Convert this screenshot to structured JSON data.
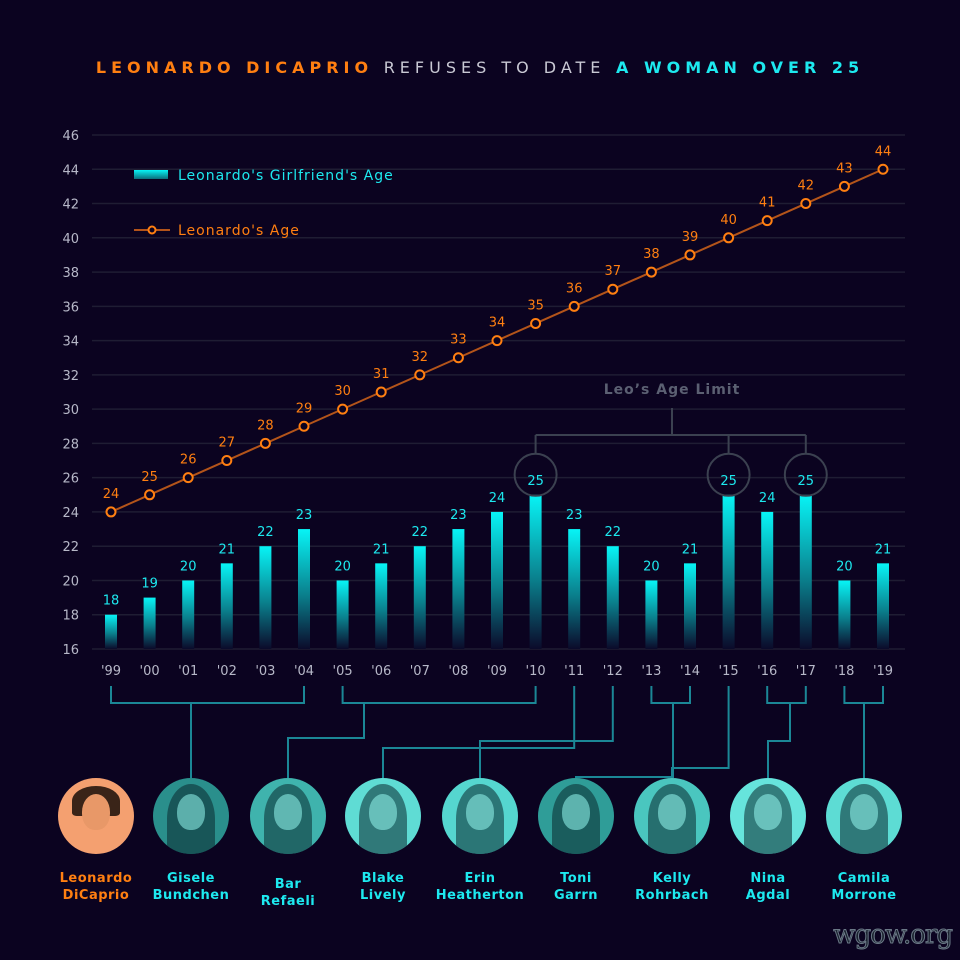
{
  "title": {
    "part1": "LEONARDO DICAPRIO",
    "part2": "REFUSES TO DATE",
    "part3": "A WOMAN OVER 25"
  },
  "colors": {
    "background": "#0b0320",
    "leo": "#ff7f11",
    "girlfriend": "#1de9ef",
    "grid": "#1f1d33",
    "connector": "#1b8796",
    "limit": "#3b4150"
  },
  "chart_data": {
    "type": "bar+line",
    "title": "LEONARDO DICAPRIO REFUSES TO DATE A WOMAN OVER 25",
    "categories": [
      "'99",
      "'00",
      "'01",
      "'02",
      "'03",
      "'04",
      "'05",
      "'06",
      "'07",
      "'08",
      "'09",
      "'10",
      "'11",
      "'12",
      "'13",
      "'14",
      "'15",
      "'16",
      "'17",
      "'18",
      "'19"
    ],
    "series": [
      {
        "name": "Leonardo's Girlfriend's Age",
        "type": "bar",
        "values": [
          18,
          19,
          20,
          21,
          22,
          23,
          20,
          21,
          22,
          23,
          24,
          25,
          23,
          22,
          20,
          21,
          25,
          24,
          25,
          20,
          21
        ]
      },
      {
        "name": "Leonardo's Age",
        "type": "line",
        "values": [
          24,
          25,
          26,
          27,
          28,
          29,
          30,
          31,
          32,
          33,
          34,
          35,
          36,
          37,
          38,
          39,
          40,
          41,
          42,
          43,
          44
        ]
      }
    ],
    "yticks": [
      16,
      18,
      20,
      22,
      24,
      26,
      28,
      30,
      32,
      34,
      36,
      38,
      40,
      42,
      44,
      46
    ],
    "ylim": [
      16,
      46
    ],
    "grid": true,
    "legend": "top-left",
    "annotation": {
      "text": "Leo’s Age Limit",
      "highlight_categories": [
        "'10",
        "'15",
        "'17"
      ],
      "value": 25
    }
  },
  "people": [
    {
      "first": "Leonardo",
      "last": "DiCaprio",
      "years": [],
      "color": "#ff7f11",
      "tone": "#f4a070"
    },
    {
      "first": "Gisele",
      "last": "Bundchen",
      "years": [
        "'99",
        "'04"
      ],
      "color": "#1de9ef",
      "tone": "#2a8f8c"
    },
    {
      "first": "Bar",
      "last": "Refaeli",
      "years": [
        "'05",
        "'10"
      ],
      "color": "#1de9ef",
      "tone": "#3fb3ad"
    },
    {
      "first": "Blake",
      "last": "Lively",
      "years": [
        "'11"
      ],
      "color": "#1de9ef",
      "tone": "#5fdcd4"
    },
    {
      "first": "Erin",
      "last": "Heatherton",
      "years": [
        "'12"
      ],
      "color": "#1de9ef",
      "tone": "#55d6cf"
    },
    {
      "first": "Toni",
      "last": "Garrn",
      "years": [
        "'13",
        "'14"
      ],
      "color": "#1de9ef",
      "tone": "#2f9d98"
    },
    {
      "first": "Kelly",
      "last": "Rohrbach",
      "years": [
        "'15"
      ],
      "color": "#1de9ef",
      "tone": "#4ac6bf"
    },
    {
      "first": "Nina",
      "last": "Agdal",
      "years": [
        "'16",
        "'17"
      ],
      "color": "#1de9ef",
      "tone": "#66e4dc"
    },
    {
      "first": "Camila",
      "last": "Morrone",
      "years": [
        "'18",
        "'19"
      ],
      "color": "#1de9ef",
      "tone": "#5ddcd4"
    }
  ],
  "watermark": "wgow.org"
}
